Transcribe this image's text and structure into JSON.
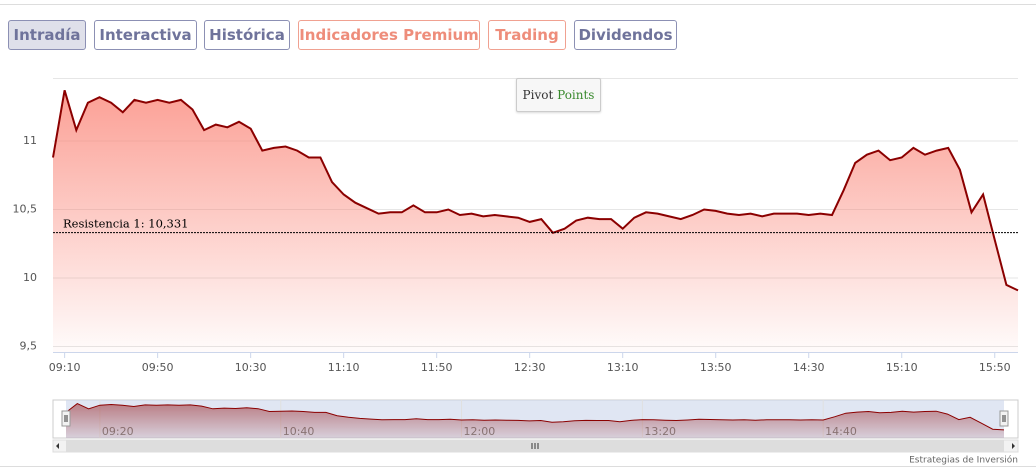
{
  "tabs": [
    "Intradía",
    "Interactiva",
    "Histórica",
    "Indicadores Premium",
    "Trading",
    "Dividendos"
  ],
  "pivot_button": {
    "word1": "Pivot",
    "word2": "Points"
  },
  "credit": "Estrategias de Inversión",
  "chart_data": {
    "type": "area",
    "x": [
      "09:05",
      "09:10",
      "09:15",
      "09:20",
      "09:25",
      "09:30",
      "09:35",
      "09:40",
      "09:45",
      "09:50",
      "09:55",
      "10:00",
      "10:05",
      "10:10",
      "10:15",
      "10:20",
      "10:25",
      "10:30",
      "10:35",
      "10:40",
      "10:45",
      "10:50",
      "10:55",
      "11:00",
      "11:05",
      "11:10",
      "11:15",
      "11:20",
      "11:25",
      "11:30",
      "11:35",
      "11:40",
      "11:45",
      "11:50",
      "11:55",
      "12:00",
      "12:05",
      "12:10",
      "12:15",
      "12:20",
      "12:25",
      "12:30",
      "12:35",
      "12:40",
      "12:45",
      "12:50",
      "12:55",
      "13:00",
      "13:05",
      "13:10",
      "13:15",
      "13:20",
      "13:25",
      "13:30",
      "13:35",
      "13:40",
      "13:45",
      "13:50",
      "13:55",
      "14:00",
      "14:05",
      "14:10",
      "14:15",
      "14:20",
      "14:25",
      "14:30",
      "14:35",
      "14:40",
      "14:45",
      "14:50",
      "14:55",
      "15:00",
      "15:05",
      "15:10",
      "15:15",
      "15:20",
      "15:25",
      "15:30",
      "15:35",
      "15:40",
      "15:45",
      "15:50",
      "15:55",
      "16:00"
    ],
    "values": [
      10.88,
      11.37,
      11.08,
      11.28,
      11.32,
      11.28,
      11.21,
      11.3,
      11.28,
      11.3,
      11.28,
      11.3,
      11.23,
      11.08,
      11.12,
      11.1,
      11.14,
      11.09,
      10.93,
      10.95,
      10.96,
      10.93,
      10.88,
      10.88,
      10.7,
      10.61,
      10.55,
      10.51,
      10.47,
      10.48,
      10.48,
      10.53,
      10.48,
      10.48,
      10.5,
      10.46,
      10.47,
      10.45,
      10.46,
      10.45,
      10.44,
      10.41,
      10.43,
      10.33,
      10.36,
      10.42,
      10.44,
      10.43,
      10.43,
      10.36,
      10.44,
      10.48,
      10.47,
      10.45,
      10.43,
      10.46,
      10.5,
      10.49,
      10.47,
      10.46,
      10.47,
      10.45,
      10.47,
      10.47,
      10.47,
      10.46,
      10.47,
      10.46,
      10.64,
      10.84,
      10.9,
      10.93,
      10.86,
      10.88,
      10.95,
      10.9,
      10.93,
      10.95,
      10.79,
      10.48,
      10.61,
      10.28,
      9.95,
      9.91
    ],
    "color": "#8b0000",
    "fill_color": "#fa8072",
    "xlim": [
      "09:05",
      "16:00"
    ],
    "xticks": [
      "09:10",
      "09:50",
      "10:30",
      "11:10",
      "11:50",
      "12:30",
      "13:10",
      "13:50",
      "14:30",
      "15:10",
      "15:50"
    ],
    "ylim": [
      9.46,
      11.46
    ],
    "yticks": [
      {
        "value": 9.5,
        "label": "9,5"
      },
      10,
      {
        "value": 10.5,
        "label": "10,5"
      },
      11
    ],
    "grid": true,
    "annotation": {
      "value": 10.331,
      "label": "Resistencia 1: 10,331"
    },
    "navigator_ticks": [
      "09:20",
      "10:40",
      "12:00",
      "13:20",
      "14:40"
    ]
  }
}
